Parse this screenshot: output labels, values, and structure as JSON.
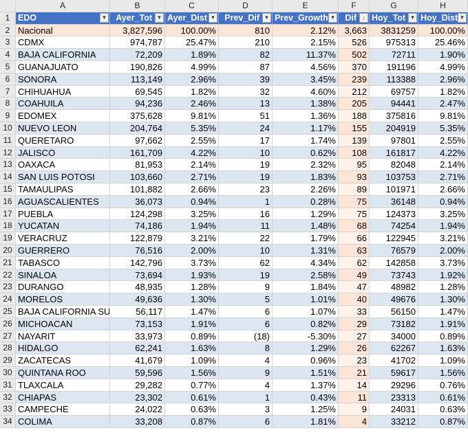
{
  "column_letters": [
    "A",
    "B",
    "C",
    "D",
    "E",
    "F",
    "G",
    "H"
  ],
  "headers": [
    "EDO",
    "Ayer_Tot",
    "Ayer_Dist",
    "Prev_Dif",
    "Prev_Growth",
    "Dif",
    "Hoy_Tot",
    "Hoy_Dist"
  ],
  "icons": {
    "filter": "filter-dropdown-icon",
    "sort_desc": "sort-descending-icon"
  },
  "colors": {
    "header_bg": "#4472c4",
    "band": "#dce6f1",
    "highlight": "#fce4d6"
  },
  "rows": [
    [
      "2",
      "Nacional",
      "3,827,596",
      "100.00%",
      "810",
      "2.12%",
      "3,663",
      "3831259",
      "100.00%"
    ],
    [
      "3",
      "CDMX",
      "974,787",
      "25.47%",
      "210",
      "2.15%",
      "526",
      "975313",
      "25.46%"
    ],
    [
      "4",
      "BAJA CALIFORNIA",
      "72,209",
      "1.89%",
      "82",
      "11.37%",
      "502",
      "72711",
      "1.90%"
    ],
    [
      "5",
      "GUANAJUATO",
      "190,826",
      "4.99%",
      "87",
      "4.56%",
      "370",
      "191196",
      "4.99%"
    ],
    [
      "6",
      "SONORA",
      "113,149",
      "2.96%",
      "39",
      "3.45%",
      "239",
      "113388",
      "2.96%"
    ],
    [
      "7",
      "CHIHUAHUA",
      "69,545",
      "1.82%",
      "32",
      "4.60%",
      "212",
      "69757",
      "1.82%"
    ],
    [
      "8",
      "COAHUILA",
      "94,236",
      "2.46%",
      "13",
      "1.38%",
      "205",
      "94441",
      "2.47%"
    ],
    [
      "9",
      "EDOMEX",
      "375,628",
      "9.81%",
      "51",
      "1.36%",
      "188",
      "375816",
      "9.81%"
    ],
    [
      "10",
      "NUEVO LEON",
      "204,764",
      "5.35%",
      "24",
      "1.17%",
      "155",
      "204919",
      "5.35%"
    ],
    [
      "11",
      "QUERETARO",
      "97,662",
      "2.55%",
      "17",
      "1.74%",
      "139",
      "97801",
      "2.55%"
    ],
    [
      "12",
      "JALISCO",
      "161,709",
      "4.22%",
      "10",
      "0.62%",
      "108",
      "161817",
      "4.22%"
    ],
    [
      "13",
      "OAXACA",
      "81,953",
      "2.14%",
      "19",
      "2.32%",
      "95",
      "82048",
      "2.14%"
    ],
    [
      "14",
      "SAN LUIS POTOSI",
      "103,660",
      "2.71%",
      "19",
      "1.83%",
      "93",
      "103753",
      "2.71%"
    ],
    [
      "15",
      "TAMAULIPAS",
      "101,882",
      "2.66%",
      "23",
      "2.26%",
      "89",
      "101971",
      "2.66%"
    ],
    [
      "16",
      "AGUASCALIENTES",
      "36,073",
      "0.94%",
      "1",
      "0.28%",
      "75",
      "36148",
      "0.94%"
    ],
    [
      "17",
      "PUEBLA",
      "124,298",
      "3.25%",
      "16",
      "1.29%",
      "75",
      "124373",
      "3.25%"
    ],
    [
      "18",
      "YUCATAN",
      "74,186",
      "1.94%",
      "11",
      "1.48%",
      "68",
      "74254",
      "1.94%"
    ],
    [
      "19",
      "VERACRUZ",
      "122,879",
      "3.21%",
      "22",
      "1.79%",
      "66",
      "122945",
      "3.21%"
    ],
    [
      "20",
      "GUERRERO",
      "76,516",
      "2.00%",
      "10",
      "1.31%",
      "63",
      "76579",
      "2.00%"
    ],
    [
      "21",
      "TABASCO",
      "142,796",
      "3.73%",
      "62",
      "4.34%",
      "62",
      "142858",
      "3.73%"
    ],
    [
      "22",
      "SINALOA",
      "73,694",
      "1.93%",
      "19",
      "2.58%",
      "49",
      "73743",
      "1.92%"
    ],
    [
      "23",
      "DURANGO",
      "48,935",
      "1.28%",
      "9",
      "1.84%",
      "47",
      "48982",
      "1.28%"
    ],
    [
      "24",
      "MORELOS",
      "49,636",
      "1.30%",
      "5",
      "1.01%",
      "40",
      "49676",
      "1.30%"
    ],
    [
      "25",
      "BAJA CALIFORNIA SUR",
      "56,117",
      "1.47%",
      "6",
      "1.07%",
      "33",
      "56150",
      "1.47%"
    ],
    [
      "26",
      "MICHOACAN",
      "73,153",
      "1.91%",
      "6",
      "0.82%",
      "29",
      "73182",
      "1.91%"
    ],
    [
      "27",
      "NAYARIT",
      "33,973",
      "0.89%",
      "(18)",
      "-5.30%",
      "27",
      "34000",
      "0.89%"
    ],
    [
      "28",
      "HIDALGO",
      "62,241",
      "1.63%",
      "8",
      "1.29%",
      "26",
      "62267",
      "1.63%"
    ],
    [
      "29",
      "ZACATECAS",
      "41,679",
      "1.09%",
      "4",
      "0.96%",
      "23",
      "41702",
      "1.09%"
    ],
    [
      "30",
      "QUINTANA ROO",
      "59,596",
      "1.56%",
      "9",
      "1.51%",
      "21",
      "59617",
      "1.56%"
    ],
    [
      "31",
      "TLAXCALA",
      "29,282",
      "0.77%",
      "4",
      "1.37%",
      "14",
      "29296",
      "0.76%"
    ],
    [
      "32",
      "CHIAPAS",
      "23,302",
      "0.61%",
      "1",
      "0.43%",
      "11",
      "23313",
      "0.61%"
    ],
    [
      "33",
      "CAMPECHE",
      "24,022",
      "0.63%",
      "3",
      "1.25%",
      "9",
      "24031",
      "0.63%"
    ],
    [
      "34",
      "COLIMA",
      "33,208",
      "0.87%",
      "6",
      "1.81%",
      "4",
      "33212",
      "0.87%"
    ]
  ]
}
